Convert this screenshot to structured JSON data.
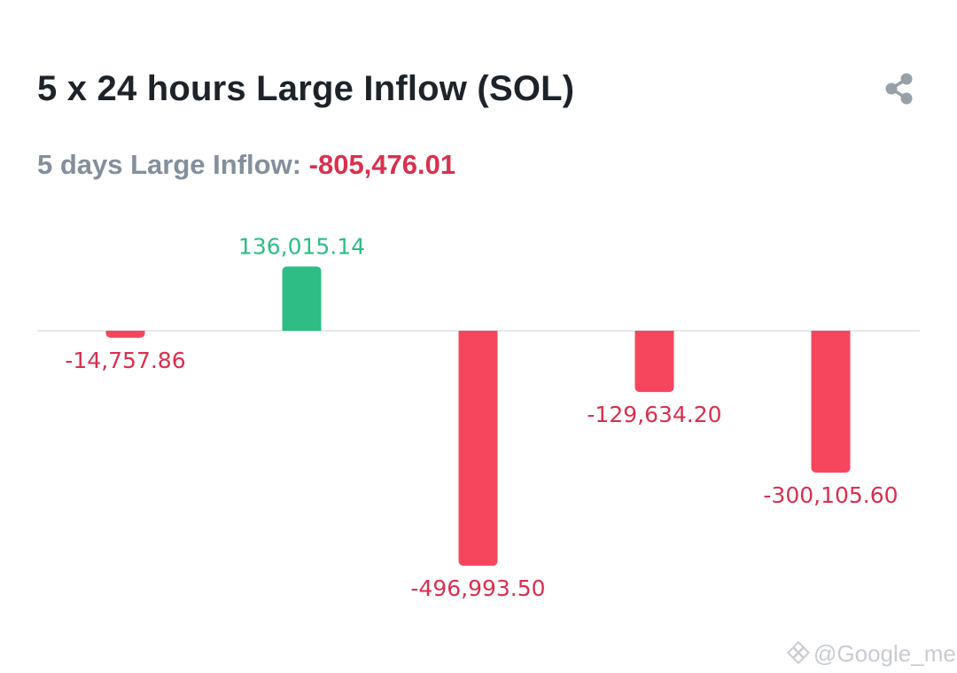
{
  "header": {
    "title": "5 x 24 hours Large Inflow (SOL)",
    "share_icon": "share-icon"
  },
  "summary": {
    "label": "5 days Large Inflow:",
    "value": "-805,476.01"
  },
  "colors": {
    "positive": "#2ebd85",
    "negative": "#f6465d",
    "negative_text": "#d9304e",
    "positive_text": "#2ebd85",
    "baseline": "#e6e8ea"
  },
  "chart_data": {
    "type": "bar",
    "values": [
      -14757.86,
      136015.14,
      -496993.5,
      -129634.2,
      -300105.6
    ],
    "labels": [
      "-14,757.86",
      "136,015.14",
      "-496,993.50",
      "-129,634.20",
      "-300,105.60"
    ],
    "title": "",
    "xlabel": "",
    "ylabel": "",
    "grid": false
  },
  "watermark": {
    "text": "@Google_me",
    "icon": "binance-logo-icon"
  }
}
